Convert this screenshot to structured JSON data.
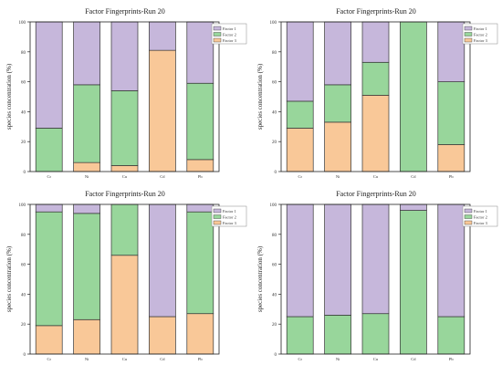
{
  "colors": {
    "factor1": "#c6b7db",
    "factor2": "#98d69b",
    "factor3": "#f9c898"
  },
  "chart_data": [
    {
      "type": "bar",
      "stacked": true,
      "title": "Factor Fingerprints-Run 20",
      "ylabel": "species concentration (%)",
      "categories": [
        "Cr",
        "Ni",
        "Cu",
        "Cd",
        "Pb"
      ],
      "ylim": [
        0,
        100
      ],
      "yticks": [
        "0",
        "20",
        "40",
        "60",
        "80",
        "100"
      ],
      "legend": "top-right",
      "series": [
        {
          "name": "Factor 1",
          "values": [
            71,
            42,
            46,
            19,
            41
          ]
        },
        {
          "name": "Factor 2",
          "values": [
            29,
            52,
            50,
            0,
            51
          ]
        },
        {
          "name": "Factor 3",
          "values": [
            0,
            6,
            4,
            81,
            8
          ]
        }
      ]
    },
    {
      "type": "bar",
      "stacked": true,
      "title": "Factor Fingerprints-Run 20",
      "ylabel": "species concentration (%)",
      "categories": [
        "Cr",
        "Ni",
        "Cu",
        "Cd",
        "Pb"
      ],
      "ylim": [
        0,
        100
      ],
      "yticks": [
        "0",
        "20",
        "40",
        "60",
        "80",
        "100"
      ],
      "legend": "top-right",
      "series": [
        {
          "name": "Factor 1",
          "values": [
            53,
            42,
            27,
            0,
            40
          ]
        },
        {
          "name": "Factor 2",
          "values": [
            18,
            25,
            22,
            100,
            42
          ]
        },
        {
          "name": "Factor 3",
          "values": [
            29,
            33,
            51,
            0,
            18
          ]
        }
      ]
    },
    {
      "type": "bar",
      "stacked": true,
      "title": "Factor Fingerprints-Run 20",
      "ylabel": "species concentration (%)",
      "categories": [
        "Cr",
        "Ni",
        "Cu",
        "Cd",
        "Pb"
      ],
      "ylim": [
        0,
        100
      ],
      "yticks": [
        "0",
        "20",
        "40",
        "60",
        "80",
        "100"
      ],
      "legend": "top-right",
      "series": [
        {
          "name": "Factor 1",
          "values": [
            5,
            6,
            0,
            75,
            5
          ]
        },
        {
          "name": "Factor 2",
          "values": [
            76,
            71,
            34,
            0,
            68
          ]
        },
        {
          "name": "Factor 3",
          "values": [
            19,
            23,
            66,
            25,
            27
          ]
        }
      ]
    },
    {
      "type": "bar",
      "stacked": true,
      "title": "Factor Fingerprints-Run 20",
      "ylabel": "species concentration (%)",
      "categories": [
        "Cr",
        "Ni",
        "Cu",
        "Cd",
        "Pb"
      ],
      "ylim": [
        0,
        100
      ],
      "yticks": [
        "0",
        "20",
        "40",
        "60",
        "80",
        "100"
      ],
      "legend": "top-right",
      "series": [
        {
          "name": "Factor 1",
          "values": [
            75,
            74,
            73,
            4,
            75
          ]
        },
        {
          "name": "Factor 2",
          "values": [
            25,
            26,
            27,
            96,
            25
          ]
        },
        {
          "name": "Factor 3",
          "values": [
            0,
            0,
            0,
            0,
            0
          ]
        }
      ]
    }
  ]
}
